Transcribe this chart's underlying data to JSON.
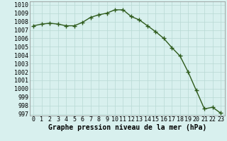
{
  "x": [
    0,
    1,
    2,
    3,
    4,
    5,
    6,
    7,
    8,
    9,
    10,
    11,
    12,
    13,
    14,
    15,
    16,
    17,
    18,
    19,
    20,
    21,
    22,
    23
  ],
  "y": [
    1007.5,
    1007.7,
    1007.8,
    1007.7,
    1007.5,
    1007.5,
    1007.9,
    1008.5,
    1008.8,
    1009.0,
    1009.4,
    1009.4,
    1008.6,
    1008.2,
    1007.5,
    1006.8,
    1006.0,
    1004.9,
    1003.9,
    1002.0,
    999.8,
    997.6,
    997.8,
    997.1
  ],
  "ylim_min": 996.8,
  "ylim_max": 1010.4,
  "xlim_min": -0.5,
  "xlim_max": 23.5,
  "yticks": [
    997,
    998,
    999,
    1000,
    1001,
    1002,
    1003,
    1004,
    1005,
    1006,
    1007,
    1008,
    1009,
    1010
  ],
  "xticks": [
    0,
    1,
    2,
    3,
    4,
    5,
    6,
    7,
    8,
    9,
    10,
    11,
    12,
    13,
    14,
    15,
    16,
    17,
    18,
    19,
    20,
    21,
    22,
    23
  ],
  "line_color": "#2d5a1b",
  "marker": "+",
  "marker_size": 4,
  "bg_color": "#d8f0ee",
  "grid_color": "#b8d8d4",
  "xlabel": "Graphe pression niveau de la mer (hPa)",
  "xlabel_fontsize": 7,
  "tick_fontsize": 6,
  "line_width": 1.0,
  "marker_edge_width": 1.0
}
